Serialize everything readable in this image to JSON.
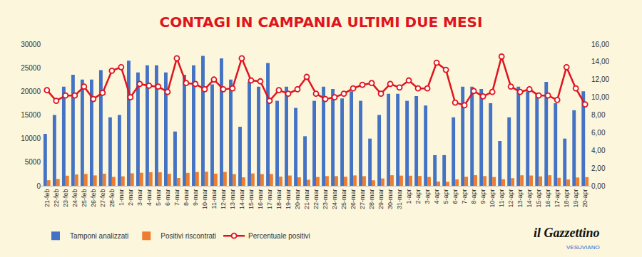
{
  "chart_data": {
    "type": "bar",
    "title": "CONTAGI IN CAMPANIA ULTIMI DUE MESI",
    "categories": [
      "21-feb",
      "22-feb",
      "23-feb",
      "24-feb",
      "25-feb",
      "26-feb",
      "27-feb",
      "28-feb",
      "1-mar",
      "2-mar",
      "3-mar",
      "4-mar",
      "5-mar",
      "6-mar",
      "7-mar",
      "8-mar",
      "9-mar",
      "10-mar",
      "11-mar",
      "12-mar",
      "13-mar",
      "14-mar",
      "15-mar",
      "16-mar",
      "17-mar",
      "18-mar",
      "19-mar",
      "20-mar",
      "21-mar",
      "22-mar",
      "23-mar",
      "24-mar",
      "25-mar",
      "26-mar",
      "27-mar",
      "28-mar",
      "29-mar",
      "30-mar",
      "31-mar",
      "1-apr",
      "2-apr",
      "3-apr",
      "4-apr",
      "5-apr",
      "6-apr",
      "7-apr",
      "8-apr",
      "9-apr",
      "10-apr",
      "11-apr",
      "12-apr",
      "13-apr",
      "14-apr",
      "15-apr",
      "16-apr",
      "17-apr",
      "18-apr",
      "19-apr",
      "20-apr"
    ],
    "series": [
      {
        "name": "Tamponi analizzati",
        "type": "bar",
        "color": "#4472c4",
        "values": [
          11000,
          15000,
          21000,
          23500,
          22500,
          22500,
          24500,
          14500,
          15000,
          26500,
          24000,
          25500,
          25500,
          24000,
          11500,
          23500,
          25500,
          27500,
          21500,
          27000,
          22500,
          12500,
          22000,
          21000,
          26000,
          18000,
          21000,
          16500,
          10500,
          18000,
          21000,
          20500,
          18500,
          20000,
          18000,
          10000,
          15000,
          19500,
          19500,
          18000,
          19000,
          17000,
          6500,
          6500,
          14500,
          21000,
          21000,
          20500,
          17500,
          9500,
          14500,
          21000,
          20000,
          19500,
          22000,
          17500,
          10000,
          16000,
          20000
        ]
      },
      {
        "name": "Positivi riscontrati",
        "type": "bar",
        "color": "#ed7d31",
        "values": [
          1190,
          1440,
          2140,
          2400,
          2520,
          2200,
          2570,
          1890,
          2010,
          2650,
          2760,
          2880,
          2860,
          2540,
          1660,
          2730,
          2930,
          3000,
          2580,
          2940,
          2480,
          1800,
          2620,
          2480,
          2500,
          1940,
          2180,
          1800,
          1290,
          1870,
          2060,
          2050,
          1920,
          2200,
          2050,
          1160,
          1560,
          2240,
          2160,
          2140,
          2090,
          1870,
          900,
          850,
          1360,
          1910,
          2250,
          2070,
          1860,
          1390,
          1620,
          2230,
          2180,
          1990,
          2240,
          1700,
          1340,
          1760,
          1840
        ]
      },
      {
        "name": "Percentuale positivi",
        "type": "line",
        "color": "#e0141e",
        "marker": "circle",
        "axis": "y2",
        "values": [
          10.8,
          9.6,
          10.2,
          10.2,
          11.2,
          9.8,
          10.5,
          13.0,
          13.4,
          10.0,
          11.5,
          11.3,
          11.2,
          10.6,
          14.4,
          11.6,
          11.5,
          10.9,
          12.0,
          10.9,
          11.0,
          14.4,
          11.9,
          11.8,
          9.6,
          10.8,
          10.4,
          10.9,
          12.3,
          10.4,
          9.8,
          10.0,
          10.4,
          11.0,
          11.4,
          11.6,
          10.4,
          11.5,
          11.1,
          11.9,
          11.0,
          11.0,
          13.9,
          13.1,
          9.4,
          9.1,
          10.7,
          10.1,
          10.6,
          14.6,
          11.2,
          10.6,
          10.9,
          10.2,
          10.2,
          9.7,
          13.4,
          11.0,
          9.2
        ]
      }
    ],
    "ylim": [
      0,
      30000
    ],
    "yticks": [
      0,
      5000,
      10000,
      15000,
      20000,
      25000,
      30000
    ],
    "y2lim": [
      0,
      16
    ],
    "y2ticks": [
      {
        "value": 0,
        "label": "0,00"
      },
      {
        "value": 2,
        "label": "2,00"
      },
      {
        "value": 4,
        "label": "4,00"
      },
      {
        "value": 6,
        "label": "6,00"
      },
      {
        "value": 8,
        "label": "8,00"
      },
      {
        "value": 10,
        "label": "10,00"
      },
      {
        "value": 12,
        "label": "12,00"
      },
      {
        "value": 14,
        "label": "14,00"
      },
      {
        "value": 16,
        "label": "16,00"
      }
    ],
    "grid": false,
    "legend": "bottom",
    "annotations": [
      "il Gazzettino",
      "VESUVIANO"
    ]
  }
}
